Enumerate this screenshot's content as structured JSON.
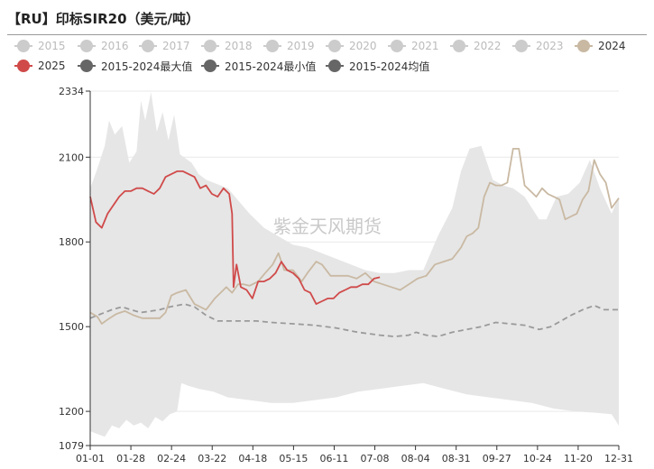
{
  "title": "【RU】印标SIR20（美元/吨）",
  "watermark": "紫金天风期货",
  "legend": [
    {
      "label": "2015",
      "color": "#cccccc",
      "active": false
    },
    {
      "label": "2016",
      "color": "#cccccc",
      "active": false
    },
    {
      "label": "2017",
      "color": "#cccccc",
      "active": false
    },
    {
      "label": "2018",
      "color": "#cccccc",
      "active": false
    },
    {
      "label": "2019",
      "color": "#cccccc",
      "active": false
    },
    {
      "label": "2020",
      "color": "#cccccc",
      "active": false
    },
    {
      "label": "2021",
      "color": "#cccccc",
      "active": false
    },
    {
      "label": "2022",
      "color": "#cccccc",
      "active": false
    },
    {
      "label": "2023",
      "color": "#cccccc",
      "active": false
    },
    {
      "label": "2024",
      "color": "#c9b9a3",
      "active": true
    },
    {
      "label": "2025",
      "color": "#d04a4a",
      "active": true
    },
    {
      "label": "2015-2024最大值",
      "color": "#666666",
      "active": true
    },
    {
      "label": "2015-2024最小值",
      "color": "#666666",
      "active": true
    },
    {
      "label": "2015-2024均值",
      "color": "#666666",
      "active": true
    }
  ],
  "chart_data": {
    "type": "line",
    "title": "【RU】印标SIR20（美元/吨）",
    "xlabel": "",
    "ylabel": "",
    "ylim": [
      1079,
      2334
    ],
    "xlim_days": [
      0,
      365
    ],
    "x_ticks": [
      "01-01",
      "01-28",
      "02-24",
      "03-22",
      "04-18",
      "05-15",
      "06-11",
      "07-08",
      "08-04",
      "08-31",
      "09-27",
      "10-24",
      "11-20",
      "12-31"
    ],
    "y_ticks": [
      1079,
      1200,
      1500,
      1800,
      2100,
      2334
    ],
    "grid": "horizontal",
    "series": [
      {
        "name": "2015-2024最大值",
        "style": "band-upper",
        "color": "#e6e6e6",
        "points": [
          [
            0,
            1990
          ],
          [
            5,
            2060
          ],
          [
            10,
            2140
          ],
          [
            13,
            2230
          ],
          [
            17,
            2180
          ],
          [
            22,
            2210
          ],
          [
            27,
            2080
          ],
          [
            32,
            2120
          ],
          [
            35,
            2300
          ],
          [
            38,
            2230
          ],
          [
            42,
            2330
          ],
          [
            46,
            2190
          ],
          [
            50,
            2260
          ],
          [
            54,
            2160
          ],
          [
            58,
            2250
          ],
          [
            62,
            2110
          ],
          [
            70,
            2080
          ],
          [
            75,
            2040
          ],
          [
            80,
            2020
          ],
          [
            85,
            2010
          ],
          [
            90,
            2000
          ],
          [
            95,
            1990
          ],
          [
            100,
            1960
          ],
          [
            110,
            1900
          ],
          [
            120,
            1850
          ],
          [
            130,
            1820
          ],
          [
            140,
            1790
          ],
          [
            150,
            1780
          ],
          [
            160,
            1760
          ],
          [
            170,
            1740
          ],
          [
            180,
            1720
          ],
          [
            190,
            1700
          ],
          [
            200,
            1690
          ],
          [
            210,
            1690
          ],
          [
            220,
            1700
          ],
          [
            230,
            1700
          ],
          [
            240,
            1820
          ],
          [
            250,
            1920
          ],
          [
            256,
            2050
          ],
          [
            262,
            2130
          ],
          [
            270,
            2140
          ],
          [
            278,
            2020
          ],
          [
            285,
            2000
          ],
          [
            292,
            1990
          ],
          [
            300,
            1960
          ],
          [
            310,
            1880
          ],
          [
            315,
            1880
          ],
          [
            322,
            1960
          ],
          [
            330,
            1970
          ],
          [
            338,
            2010
          ],
          [
            345,
            2090
          ],
          [
            352,
            1990
          ],
          [
            360,
            1900
          ],
          [
            365,
            1960
          ]
        ]
      },
      {
        "name": "2015-2024最小值",
        "style": "band-lower",
        "color": "#e6e6e6",
        "points": [
          [
            0,
            1130
          ],
          [
            5,
            1120
          ],
          [
            10,
            1110
          ],
          [
            15,
            1150
          ],
          [
            20,
            1140
          ],
          [
            25,
            1170
          ],
          [
            30,
            1150
          ],
          [
            35,
            1160
          ],
          [
            40,
            1140
          ],
          [
            45,
            1180
          ],
          [
            50,
            1165
          ],
          [
            55,
            1190
          ],
          [
            60,
            1200
          ],
          [
            63,
            1300
          ],
          [
            68,
            1290
          ],
          [
            75,
            1280
          ],
          [
            85,
            1270
          ],
          [
            95,
            1250
          ],
          [
            110,
            1240
          ],
          [
            125,
            1230
          ],
          [
            140,
            1230
          ],
          [
            155,
            1240
          ],
          [
            170,
            1250
          ],
          [
            185,
            1270
          ],
          [
            200,
            1280
          ],
          [
            215,
            1290
          ],
          [
            230,
            1300
          ],
          [
            245,
            1280
          ],
          [
            260,
            1260
          ],
          [
            275,
            1250
          ],
          [
            290,
            1240
          ],
          [
            305,
            1230
          ],
          [
            320,
            1210
          ],
          [
            335,
            1200
          ],
          [
            350,
            1195
          ],
          [
            360,
            1190
          ],
          [
            365,
            1150
          ]
        ]
      },
      {
        "name": "2015-2024均值",
        "style": "dashed",
        "color": "#9a9a9a",
        "points": [
          [
            0,
            1530
          ],
          [
            5,
            1540
          ],
          [
            10,
            1550
          ],
          [
            15,
            1560
          ],
          [
            22,
            1570
          ],
          [
            28,
            1560
          ],
          [
            35,
            1550
          ],
          [
            42,
            1555
          ],
          [
            48,
            1560
          ],
          [
            55,
            1570
          ],
          [
            60,
            1575
          ],
          [
            65,
            1580
          ],
          [
            72,
            1570
          ],
          [
            80,
            1540
          ],
          [
            88,
            1520
          ],
          [
            95,
            1520
          ],
          [
            105,
            1520
          ],
          [
            115,
            1520
          ],
          [
            125,
            1515
          ],
          [
            140,
            1510
          ],
          [
            155,
            1505
          ],
          [
            170,
            1495
          ],
          [
            185,
            1480
          ],
          [
            200,
            1470
          ],
          [
            210,
            1465
          ],
          [
            220,
            1470
          ],
          [
            225,
            1480
          ],
          [
            232,
            1470
          ],
          [
            240,
            1465
          ],
          [
            250,
            1480
          ],
          [
            260,
            1490
          ],
          [
            270,
            1500
          ],
          [
            280,
            1515
          ],
          [
            290,
            1510
          ],
          [
            300,
            1505
          ],
          [
            310,
            1490
          ],
          [
            318,
            1500
          ],
          [
            325,
            1520
          ],
          [
            332,
            1540
          ],
          [
            340,
            1560
          ],
          [
            348,
            1575
          ],
          [
            355,
            1560
          ],
          [
            365,
            1560
          ]
        ]
      },
      {
        "name": "2024",
        "style": "solid",
        "color": "#c9b9a3",
        "points": [
          [
            0,
            1550
          ],
          [
            5,
            1535
          ],
          [
            8,
            1510
          ],
          [
            12,
            1525
          ],
          [
            18,
            1545
          ],
          [
            24,
            1555
          ],
          [
            30,
            1540
          ],
          [
            36,
            1530
          ],
          [
            42,
            1530
          ],
          [
            48,
            1530
          ],
          [
            52,
            1550
          ],
          [
            56,
            1610
          ],
          [
            60,
            1620
          ],
          [
            66,
            1630
          ],
          [
            72,
            1580
          ],
          [
            80,
            1560
          ],
          [
            86,
            1600
          ],
          [
            90,
            1620
          ],
          [
            94,
            1640
          ],
          [
            98,
            1620
          ],
          [
            102,
            1650
          ],
          [
            106,
            1650
          ],
          [
            110,
            1645
          ],
          [
            116,
            1660
          ],
          [
            120,
            1685
          ],
          [
            126,
            1720
          ],
          [
            130,
            1760
          ],
          [
            134,
            1700
          ],
          [
            140,
            1700
          ],
          [
            146,
            1660
          ],
          [
            150,
            1690
          ],
          [
            156,
            1730
          ],
          [
            160,
            1720
          ],
          [
            166,
            1680
          ],
          [
            172,
            1680
          ],
          [
            178,
            1680
          ],
          [
            184,
            1670
          ],
          [
            190,
            1690
          ],
          [
            196,
            1660
          ],
          [
            202,
            1650
          ],
          [
            208,
            1640
          ],
          [
            214,
            1630
          ],
          [
            220,
            1650
          ],
          [
            226,
            1670
          ],
          [
            232,
            1680
          ],
          [
            238,
            1720
          ],
          [
            244,
            1730
          ],
          [
            250,
            1740
          ],
          [
            256,
            1780
          ],
          [
            260,
            1820
          ],
          [
            264,
            1830
          ],
          [
            268,
            1850
          ],
          [
            272,
            1960
          ],
          [
            276,
            2010
          ],
          [
            280,
            2000
          ],
          [
            284,
            2000
          ],
          [
            288,
            2010
          ],
          [
            292,
            2130
          ],
          [
            296,
            2130
          ],
          [
            300,
            2000
          ],
          [
            304,
            1980
          ],
          [
            308,
            1960
          ],
          [
            312,
            1990
          ],
          [
            316,
            1970
          ],
          [
            320,
            1960
          ],
          [
            324,
            1950
          ],
          [
            328,
            1880
          ],
          [
            332,
            1890
          ],
          [
            336,
            1900
          ],
          [
            340,
            1950
          ],
          [
            344,
            1980
          ],
          [
            348,
            2090
          ],
          [
            352,
            2040
          ],
          [
            356,
            2010
          ],
          [
            360,
            1920
          ],
          [
            365,
            1955
          ]
        ]
      },
      {
        "name": "2025",
        "style": "solid",
        "color": "#d04a4a",
        "points": [
          [
            0,
            1960
          ],
          [
            4,
            1870
          ],
          [
            8,
            1850
          ],
          [
            12,
            1900
          ],
          [
            16,
            1930
          ],
          [
            20,
            1960
          ],
          [
            24,
            1980
          ],
          [
            28,
            1980
          ],
          [
            32,
            1990
          ],
          [
            36,
            1990
          ],
          [
            40,
            1980
          ],
          [
            44,
            1970
          ],
          [
            48,
            1990
          ],
          [
            52,
            2030
          ],
          [
            56,
            2040
          ],
          [
            60,
            2050
          ],
          [
            64,
            2050
          ],
          [
            68,
            2040
          ],
          [
            72,
            2030
          ],
          [
            76,
            1990
          ],
          [
            80,
            2000
          ],
          [
            84,
            1970
          ],
          [
            88,
            1960
          ],
          [
            92,
            1990
          ],
          [
            96,
            1970
          ],
          [
            98,
            1900
          ],
          [
            99,
            1640
          ],
          [
            101,
            1720
          ],
          [
            104,
            1640
          ],
          [
            108,
            1630
          ],
          [
            112,
            1600
          ],
          [
            116,
            1660
          ],
          [
            120,
            1660
          ],
          [
            124,
            1670
          ],
          [
            128,
            1690
          ],
          [
            132,
            1730
          ],
          [
            136,
            1700
          ],
          [
            140,
            1690
          ],
          [
            144,
            1670
          ],
          [
            148,
            1630
          ],
          [
            152,
            1620
          ],
          [
            156,
            1580
          ],
          [
            160,
            1590
          ],
          [
            164,
            1600
          ],
          [
            168,
            1600
          ],
          [
            172,
            1620
          ],
          [
            176,
            1630
          ],
          [
            180,
            1640
          ],
          [
            184,
            1640
          ],
          [
            188,
            1650
          ],
          [
            192,
            1650
          ],
          [
            196,
            1670
          ],
          [
            200,
            1675
          ]
        ]
      }
    ]
  }
}
